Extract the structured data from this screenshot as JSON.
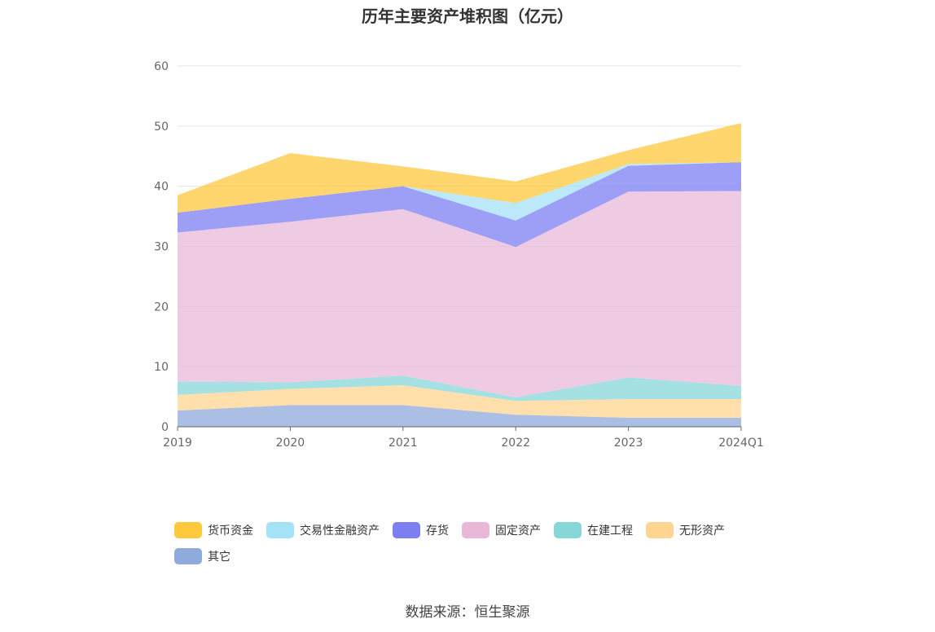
{
  "chart_data": {
    "type": "area",
    "stacked": true,
    "title": "历年主要资产堆积图（亿元）",
    "categories": [
      "2019",
      "2020",
      "2021",
      "2022",
      "2023",
      "2024Q1"
    ],
    "ylim": [
      0,
      60
    ],
    "yticks": [
      0,
      10,
      20,
      30,
      40,
      50,
      60
    ],
    "grid": true,
    "legend_position": "bottom",
    "series": [
      {
        "name": "其它",
        "color": "#8faadc",
        "values": [
          2.7,
          3.6,
          3.6,
          2.0,
          1.5,
          1.5
        ]
      },
      {
        "name": "无形资产",
        "color": "#ffd591",
        "values": [
          2.6,
          2.7,
          3.3,
          2.3,
          3.1,
          3.1
        ]
      },
      {
        "name": "在建工程",
        "color": "#87d7d9",
        "values": [
          2.2,
          1.1,
          1.6,
          0.6,
          3.6,
          2.2
        ]
      },
      {
        "name": "固定资产",
        "color": "#e9b8d9",
        "values": [
          24.8,
          26.7,
          27.7,
          25.0,
          30.9,
          32.4
        ]
      },
      {
        "name": "存货",
        "color": "#7b7ff2",
        "values": [
          3.3,
          3.8,
          3.8,
          4.4,
          4.3,
          4.8
        ]
      },
      {
        "name": "交易性金融资产",
        "color": "#a6e2f7",
        "values": [
          0,
          0,
          0,
          2.9,
          0.3,
          0
        ]
      },
      {
        "name": "货币资金",
        "color": "#ffc83d",
        "values": [
          2.9,
          7.6,
          3.3,
          3.6,
          2.3,
          6.5
        ]
      }
    ]
  },
  "legend_order": [
    "货币资金",
    "交易性金融资产",
    "存货",
    "固定资产",
    "在建工程",
    "无形资产",
    "其它"
  ],
  "source": "数据来源：恒生聚源"
}
